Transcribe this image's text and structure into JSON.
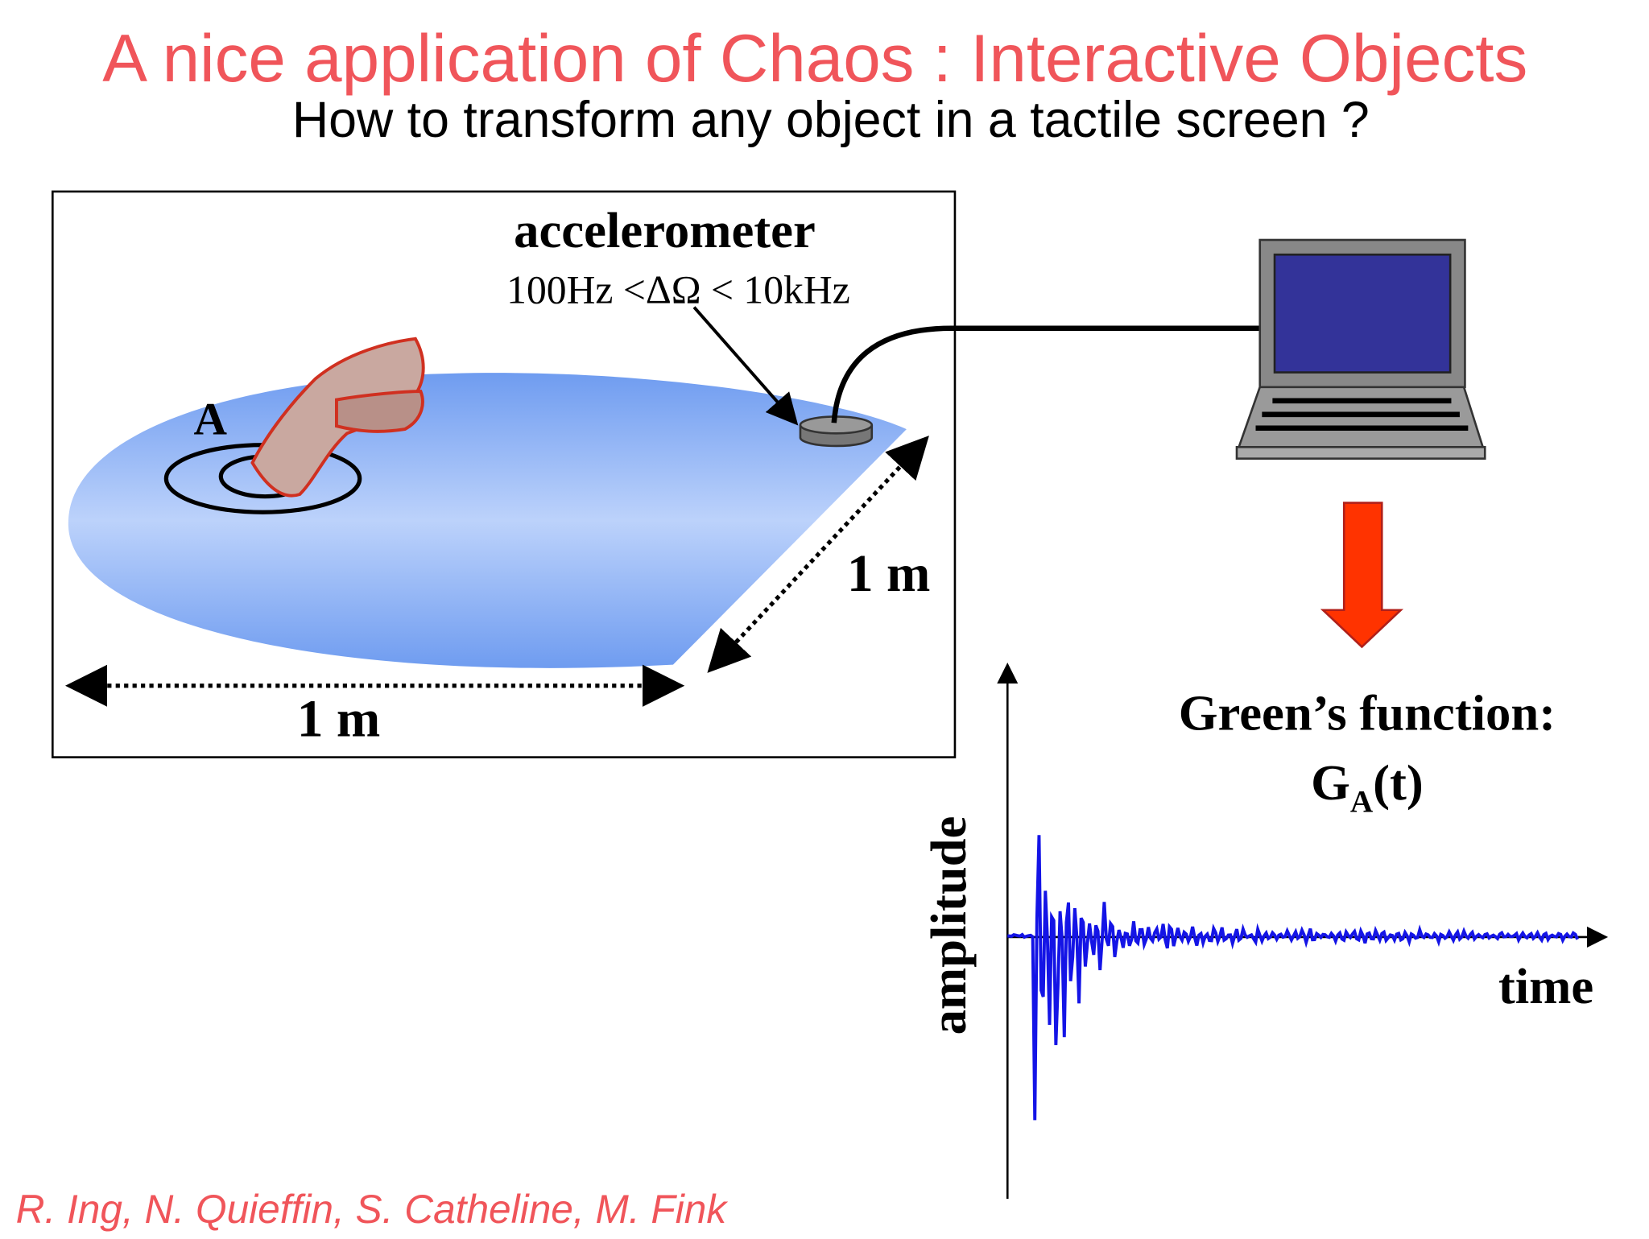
{
  "title": "A nice application of Chaos : Interactive Objects",
  "subtitle": "How to transform any object in a tactile screen ?",
  "diagram": {
    "sensor_label": "accelerometer",
    "bandwidth": "100Hz <ΔΩ < 10kHz",
    "point_label": "A",
    "width_label": "1 m",
    "depth_label": "1 m"
  },
  "signal": {
    "title": "Green’s function:",
    "symbol": "G",
    "symbol_subscript": "A",
    "symbol_args": "(t)",
    "y_label": "amplitude",
    "x_label": "time"
  },
  "authors": "R. Ing, N. Quieffin, S. Catheline, M. Fink"
}
